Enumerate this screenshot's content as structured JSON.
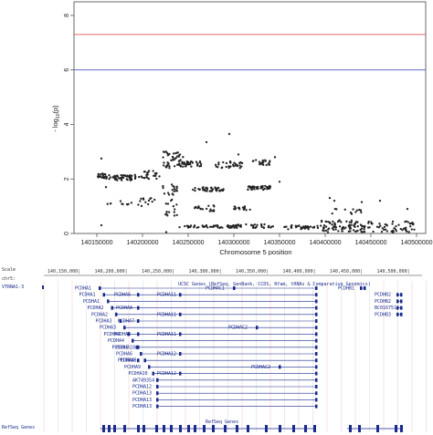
{
  "chart_data": {
    "type": "scatter",
    "xlabel": "Chromosome 5 position",
    "ylabel": "- log10(p)",
    "ylabel_main": "- log",
    "ylabel_sub": "10",
    "ylabel_tail": "(p)",
    "xlim": [
      140125000,
      140510000
    ],
    "ylim": [
      0,
      8.5
    ],
    "xticks": [
      {
        "value": 140150000,
        "label": "140150000"
      },
      {
        "value": 140200000,
        "label": "140200000"
      },
      {
        "value": 140250000,
        "label": "140250000"
      },
      {
        "value": 140300000,
        "label": "140300000"
      },
      {
        "value": 140350000,
        "label": "140350000"
      },
      {
        "value": 140400000,
        "label": "140400000"
      },
      {
        "value": 140450000,
        "label": "140450000"
      },
      {
        "value": 140500000,
        "label": "140500000"
      }
    ],
    "yticks": [
      {
        "value": 0,
        "label": "0"
      },
      {
        "value": 2,
        "label": "2"
      },
      {
        "value": 4,
        "label": "4"
      },
      {
        "value": 6,
        "label": "6"
      },
      {
        "value": 8,
        "label": "8"
      }
    ],
    "hlines": [
      {
        "value": 7.3,
        "color": "#e23b3b"
      },
      {
        "value": 6.0,
        "color": "#4a56c8"
      }
    ],
    "point_color": "#222222",
    "clusters": [
      {
        "x": [
          140150000,
          140160000
        ],
        "y": [
          2.0,
          2.2
        ],
        "n": 22
      },
      {
        "x": [
          140160000,
          140200000
        ],
        "y": [
          1.95,
          2.15
        ],
        "n": 55
      },
      {
        "x": [
          140200000,
          140220000
        ],
        "y": [
          2.0,
          2.3
        ],
        "n": 20
      },
      {
        "x": [
          140160000,
          140200000
        ],
        "y": [
          1.0,
          1.2
        ],
        "n": 12
      },
      {
        "x": [
          140195000,
          140215000
        ],
        "y": [
          1.05,
          1.3
        ],
        "n": 10
      },
      {
        "x": [
          140222000,
          140245000
        ],
        "y": [
          2.4,
          3.0
        ],
        "n": 40
      },
      {
        "x": [
          140222000,
          140238000
        ],
        "y": [
          1.4,
          1.8
        ],
        "n": 18
      },
      {
        "x": [
          140225000,
          140240000
        ],
        "y": [
          0.6,
          1.3
        ],
        "n": 15
      },
      {
        "x": [
          140240000,
          140265000
        ],
        "y": [
          2.45,
          2.65
        ],
        "n": 35
      },
      {
        "x": [
          140255000,
          140290000
        ],
        "y": [
          1.55,
          1.7
        ],
        "n": 40
      },
      {
        "x": [
          140240000,
          140300000
        ],
        "y": [
          0.2,
          0.3
        ],
        "n": 45
      },
      {
        "x": [
          140255000,
          140280000
        ],
        "y": [
          0.8,
          1.05
        ],
        "n": 18
      },
      {
        "x": [
          140280000,
          140310000
        ],
        "y": [
          2.4,
          2.65
        ],
        "n": 30
      },
      {
        "x": [
          140300000,
          140320000
        ],
        "y": [
          0.85,
          1.0
        ],
        "n": 16
      },
      {
        "x": [
          140300000,
          140345000
        ],
        "y": [
          0.2,
          0.35
        ],
        "n": 35
      },
      {
        "x": [
          140315000,
          140340000
        ],
        "y": [
          1.6,
          1.75
        ],
        "n": 40
      },
      {
        "x": [
          140320000,
          140340000
        ],
        "y": [
          2.5,
          2.7
        ],
        "n": 20
      },
      {
        "x": [
          140355000,
          140395000
        ],
        "y": [
          0.15,
          0.3
        ],
        "n": 35
      },
      {
        "x": [
          140395000,
          140430000
        ],
        "y": [
          0.05,
          0.5
        ],
        "n": 60
      },
      {
        "x": [
          140430000,
          140500000
        ],
        "y": [
          0.05,
          0.45
        ],
        "n": 80
      },
      {
        "x": [
          140400000,
          140440000
        ],
        "y": [
          0.7,
          0.9
        ],
        "n": 12
      }
    ],
    "points": [
      {
        "x": 140155000,
        "y": 2.75
      },
      {
        "x": 140155000,
        "y": 0.3
      },
      {
        "x": 140160000,
        "y": 1.7
      },
      {
        "x": 140165000,
        "y": 1.1
      },
      {
        "x": 140226000,
        "y": 3.0
      },
      {
        "x": 140226000,
        "y": 0.05
      },
      {
        "x": 140270000,
        "y": 3.35
      },
      {
        "x": 140295000,
        "y": 3.65
      },
      {
        "x": 140305000,
        "y": 2.9
      },
      {
        "x": 140345000,
        "y": 2.8
      },
      {
        "x": 140350000,
        "y": 1.9
      },
      {
        "x": 140405000,
        "y": 1.3
      },
      {
        "x": 140410000,
        "y": 1.2
      },
      {
        "x": 140440000,
        "y": 1.15
      },
      {
        "x": 140460000,
        "y": 1.2
      },
      {
        "x": 140435000,
        "y": 0.85
      },
      {
        "x": 140490000,
        "y": 0.9
      }
    ]
  },
  "browser": {
    "scale_label": "Scale",
    "chr_label": "chr5:",
    "positions": [
      "140,150,000|",
      "140,200,000|",
      "140,250,000|",
      "140,300,000|",
      "140,350,000|",
      "140,400,000|",
      "140,450,000|",
      "140,500,000|"
    ],
    "track_title": "UCSC Genes (RefSeq, GenBank, CCDS, Rfam, tRNAs & Comparative Genomics)",
    "left_gene": "VTRNA1-3",
    "refseq_track_label": "RefSeq Genes",
    "refseq_title": "RefSeq Genes",
    "cluster_labels": [
      "PCDHA1",
      "PCDHA1",
      "PCDHA1",
      "PCDHA2",
      "PCDHA2",
      "PCDHA3",
      "PCDHA3",
      "PCDHA4",
      "PCDHA4",
      "PCDHA5",
      "PCDHA6",
      "PCDHA8",
      "PCDHA9",
      "PCDHA10",
      "AK749354",
      "PCDHA12",
      "PCDHA13",
      "PCDHA13",
      "PCDHA13"
    ],
    "mid_labels": [
      "PCDHA6",
      "PCDHA8",
      "PCDHA7",
      "PCDHA8",
      "PCDHA10",
      "PCDHA8"
    ],
    "mid2_labels": [
      "PCDHA11",
      "PCDHA11",
      "PCDHA11",
      "PCDHA12",
      "PCDHA12"
    ],
    "c3_labels": [
      "PCDHAC1",
      "PCDHAC2",
      "PCDHAC2"
    ],
    "right_labels": [
      "PCDHB1",
      "PCDHB2",
      "PCDHB2",
      "BC016751",
      "PCDHB3"
    ],
    "colors": {
      "gene": "#1a2a8c",
      "grid_red": "#f0b4b4",
      "grid_blue": "#c8cce8"
    }
  }
}
